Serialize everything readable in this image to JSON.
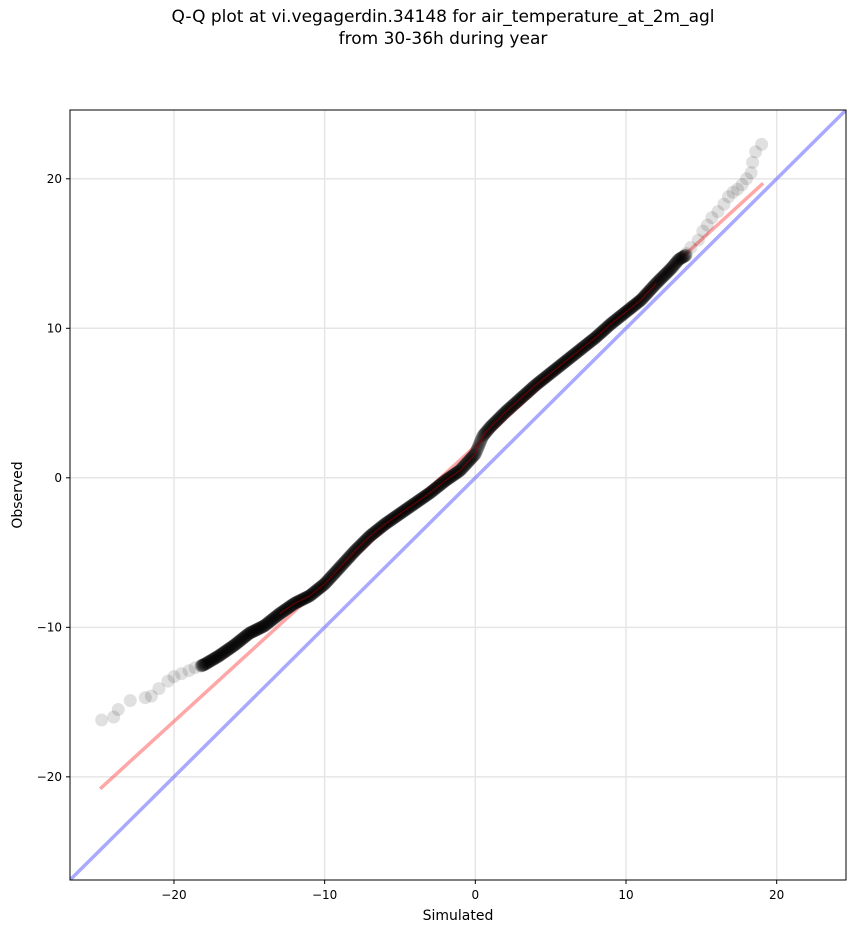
{
  "chart_data": {
    "type": "scatter",
    "title": [
      "Q-Q plot at vi.vegagerdin.34148 for air_temperature_at_2m_agl",
      "from 30-36h during year"
    ],
    "xlabel": "Simulated",
    "ylabel": "Observed",
    "xlim": [
      -26.9,
      24.6
    ],
    "ylim": [
      -26.9,
      24.6
    ],
    "xticks": [
      -20,
      -10,
      0,
      10,
      20
    ],
    "yticks": [
      -20,
      -10,
      0,
      10,
      20
    ],
    "xtick_labels": [
      "−20",
      "−10",
      "0",
      "10",
      "20"
    ],
    "ytick_labels": [
      "−20",
      "−10",
      "0",
      "10",
      "20"
    ],
    "grid": true,
    "colors": {
      "points": "#000000",
      "fit_line": "#ff5050",
      "identity_line": "#7070ff"
    },
    "identity_line": {
      "x": [
        -26.9,
        24.6
      ],
      "y": [
        -26.9,
        24.6
      ]
    },
    "fit_line": {
      "x": [
        -24.9,
        19.1
      ],
      "y": [
        -20.8,
        19.7
      ]
    },
    "quantile_curve": {
      "x": [
        -24.8,
        -24.0,
        -23.6,
        -22.9,
        -22.0,
        -21.6,
        -21.0,
        -20.5,
        -20.0,
        -19.5,
        -19.0,
        -18.5,
        -18.0,
        -17.0,
        -16.0,
        -15.0,
        -14.0,
        -13.0,
        -12.0,
        -11.0,
        -10.0,
        -9.0,
        -8.0,
        -7.0,
        -6.0,
        -5.0,
        -4.0,
        -3.0,
        -2.0,
        -1.0,
        0.0,
        0.5,
        1.0,
        2.0,
        3.0,
        4.0,
        5.0,
        6.0,
        7.0,
        8.0,
        9.0,
        10.0,
        11.0,
        12.0,
        13.0,
        13.5,
        14.0,
        14.5,
        15.0,
        15.5,
        16.0,
        16.5,
        17.0,
        17.5,
        18.0,
        18.5,
        19.0
      ],
      "y": [
        -16.2,
        -16.0,
        -15.5,
        -14.9,
        -14.7,
        -14.6,
        -14.1,
        -13.6,
        -13.3,
        -13.1,
        -12.9,
        -12.7,
        -12.5,
        -11.9,
        -11.2,
        -10.4,
        -9.9,
        -9.1,
        -8.4,
        -7.9,
        -7.1,
        -6.0,
        -4.9,
        -3.9,
        -3.1,
        -2.4,
        -1.7,
        -1.0,
        -0.2,
        0.5,
        1.6,
        2.8,
        3.4,
        4.4,
        5.3,
        6.2,
        7.0,
        7.8,
        8.6,
        9.4,
        10.3,
        11.1,
        11.9,
        13.0,
        14.0,
        14.6,
        14.9,
        15.3,
        15.8,
        16.9,
        17.8,
        18.6,
        19.2,
        19.7,
        20.2,
        21.0,
        22.0
      ]
    },
    "outlier_points": {
      "x": [
        -24.8,
        -24.0,
        -23.7,
        -22.9,
        -21.9,
        -21.5,
        -21.0,
        -20.4,
        -20.0,
        -19.5,
        -19.0,
        -18.6,
        -18.1,
        14.0,
        14.3,
        14.8,
        15.1,
        15.4,
        15.7,
        16.1,
        16.5,
        16.8,
        17.1,
        17.4,
        17.7,
        18.0,
        18.3,
        18.4,
        18.6,
        19.0
      ],
      "y": [
        -16.2,
        -16.0,
        -15.5,
        -14.9,
        -14.7,
        -14.6,
        -14.1,
        -13.6,
        -13.3,
        -13.1,
        -12.9,
        -12.7,
        -12.5,
        15.0,
        15.4,
        15.9,
        16.5,
        16.9,
        17.4,
        17.8,
        18.3,
        18.8,
        19.1,
        19.3,
        19.6,
        20.0,
        20.4,
        21.1,
        21.8,
        22.3
      ]
    }
  }
}
